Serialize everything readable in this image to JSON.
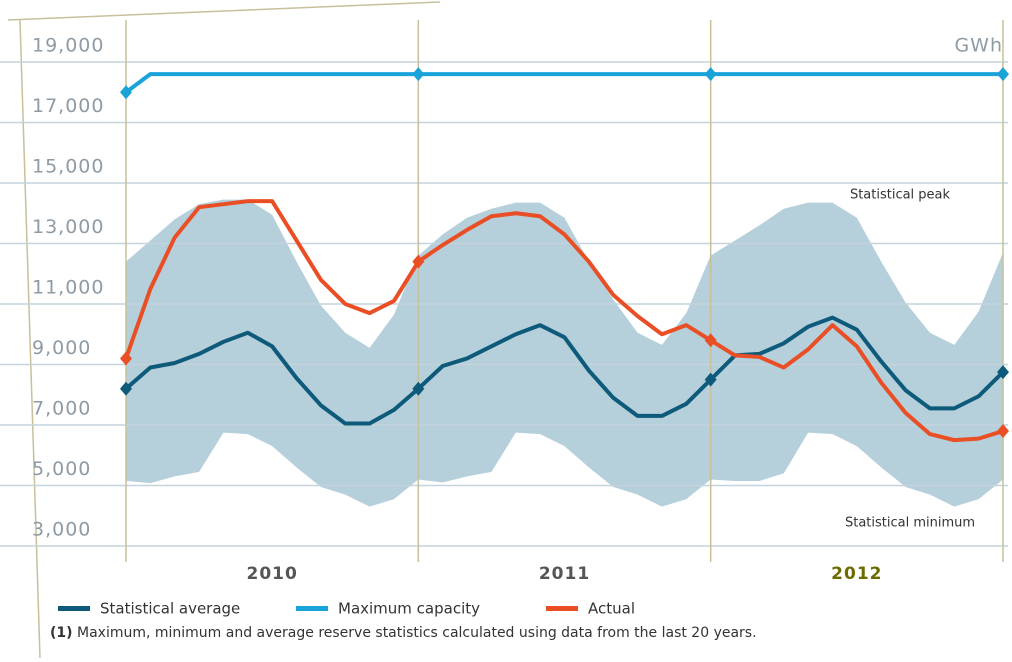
{
  "chart_data": {
    "type": "line",
    "unit_label": "GWh",
    "period_labels": [
      "2010",
      "2011",
      "2012"
    ],
    "annotations": [
      "Statistical peak",
      "Statistical minimum"
    ],
    "footnote_marker": "(1)",
    "footnote": "Maximum, minimum and average reserve statistics calculated using data from the last 20 years.",
    "ylim": [
      3000,
      19000
    ],
    "yticks": [
      {
        "value": 3000,
        "label": "3,000"
      },
      {
        "value": 5000,
        "label": "5,000"
      },
      {
        "value": 7000,
        "label": "7,000"
      },
      {
        "value": 9000,
        "label": "9,000"
      },
      {
        "value": 11000,
        "label": "11,000"
      },
      {
        "value": 13000,
        "label": "13,000"
      },
      {
        "value": 15000,
        "label": "15,000"
      },
      {
        "value": 17000,
        "label": "17,000"
      },
      {
        "value": 19000,
        "label": "19,000"
      }
    ],
    "band": {
      "color": "#b5cfdb",
      "upper": [
        12400,
        13100,
        13800,
        14300,
        14450,
        14450,
        13950,
        12400,
        10950,
        10050,
        9550,
        10650,
        12600,
        13300,
        13850,
        14150,
        14350,
        14350,
        13850,
        12400,
        11150,
        10050,
        9650,
        10700,
        12600,
        13100,
        13600,
        14150,
        14350,
        14350,
        13850,
        12400,
        11050,
        10050,
        9650,
        10750,
        12700
      ],
      "lower": [
        5150,
        5080,
        5300,
        5450,
        6750,
        6700,
        6300,
        5600,
        4950,
        4700,
        4300,
        4550,
        5200,
        5100,
        5300,
        5450,
        6750,
        6700,
        6300,
        5600,
        4950,
        4700,
        4300,
        4550,
        5200,
        5150,
        5150,
        5400,
        6750,
        6700,
        6300,
        5600,
        4950,
        4700,
        4300,
        4550,
        5200
      ]
    },
    "series": [
      {
        "name": "Statistical average",
        "color": "#0e5a7a",
        "values": [
          8200,
          8900,
          9050,
          9350,
          9750,
          10050,
          9600,
          8550,
          7650,
          7050,
          7050,
          7500,
          8200,
          8950,
          9200,
          9600,
          10000,
          10300,
          9900,
          8800,
          7900,
          7300,
          7300,
          7700,
          8500,
          9300,
          9350,
          9700,
          10250,
          10550,
          10150,
          9100,
          8150,
          7550,
          7550,
          7950,
          8750
        ]
      },
      {
        "name": "Maximum capacity",
        "color": "#1aa3d9",
        "values": [
          18000,
          18600,
          18600,
          18600,
          18600,
          18600,
          18600,
          18600,
          18600,
          18600,
          18600,
          18600,
          18600,
          18600,
          18600,
          18600,
          18600,
          18600,
          18600,
          18600,
          18600,
          18600,
          18600,
          18600,
          18600,
          18600,
          18600,
          18600,
          18600,
          18600,
          18600,
          18600,
          18600,
          18600,
          18600,
          18600,
          18600
        ]
      },
      {
        "name": "Actual",
        "color": "#e94e25",
        "values": [
          9200,
          11500,
          13200,
          14200,
          14300,
          14400,
          14400,
          13100,
          11800,
          11000,
          10700,
          11100,
          12400,
          12950,
          13450,
          13900,
          14000,
          13900,
          13300,
          12400,
          11300,
          10600,
          10000,
          10300,
          9800,
          9300,
          9250,
          8900,
          9500,
          10300,
          9600,
          8400,
          7400,
          6700,
          6500,
          6550,
          6800
        ]
      }
    ],
    "grid": true
  }
}
